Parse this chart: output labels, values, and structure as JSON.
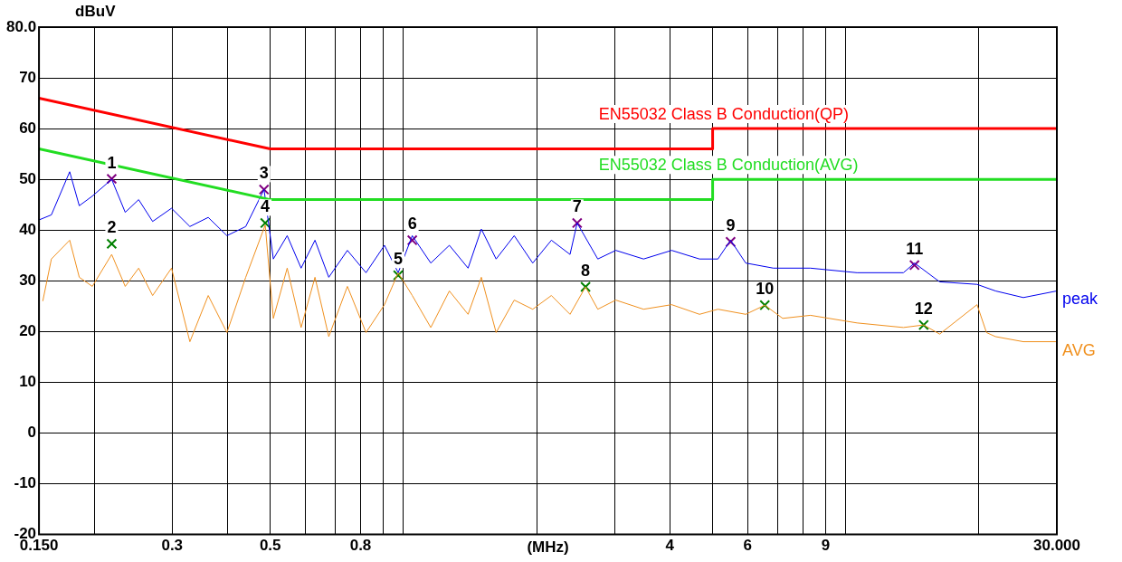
{
  "chart_data": {
    "type": "line",
    "ylabel": "dBuV",
    "xlabel": "(MHz)",
    "log": "x",
    "grid": true,
    "legend": false,
    "xlim": [
      0.15,
      30
    ],
    "xticks": [
      {
        "value": 0.15,
        "label": "0.150"
      },
      {
        "value": 0.2,
        "label": null
      },
      0.3,
      {
        "value": 0.4,
        "label": null
      },
      0.5,
      {
        "value": 0.6,
        "label": null
      },
      {
        "value": 0.7,
        "label": null
      },
      0.8,
      {
        "value": 0.9,
        "label": null
      },
      {
        "value": 1,
        "label": null
      },
      {
        "value": 2,
        "label": null
      },
      {
        "value": 3,
        "label": null
      },
      4,
      {
        "value": 5,
        "label": null
      },
      6,
      {
        "value": 7,
        "label": null
      },
      {
        "value": 8,
        "label": null
      },
      9,
      {
        "value": 10,
        "label": null
      },
      {
        "value": 20,
        "label": null
      },
      {
        "value": 30,
        "label": "30.000"
      }
    ],
    "ylim": [
      -20,
      80
    ],
    "yticks": [
      -20,
      -10,
      0,
      10,
      20,
      30,
      40,
      50,
      60,
      70,
      {
        "value": 80,
        "label": "80.0"
      }
    ],
    "series": [
      {
        "name": "EN55032 Class B Conduction(QP)",
        "type": "line",
        "color": "#ff0000",
        "x": [
          0.15,
          0.5,
          5,
          5,
          30
        ],
        "values": [
          66,
          56,
          56,
          60,
          60
        ]
      },
      {
        "name": "EN55032 Class B Conduction(AVG)",
        "type": "line",
        "color": "#22dd22",
        "x": [
          0.15,
          0.5,
          5,
          5,
          30
        ],
        "values": [
          56,
          46,
          46,
          50,
          50
        ]
      },
      {
        "name": "peak",
        "type": "line",
        "color": "#0000ee",
        "x": [
          0.15,
          0.16,
          0.176,
          0.185,
          0.198,
          0.219,
          0.235,
          0.252,
          0.271,
          0.299,
          0.329,
          0.362,
          0.399,
          0.44,
          0.484,
          0.508,
          0.546,
          0.587,
          0.631,
          0.678,
          0.747,
          0.823,
          0.906,
          0.973,
          1.047,
          1.153,
          1.27,
          1.4,
          1.5,
          1.62,
          1.78,
          1.96,
          2.16,
          2.38,
          2.47,
          2.75,
          3.02,
          3.49,
          4.04,
          4.67,
          5.14,
          5.49,
          5.94,
          6.86,
          8.32,
          10.6,
          13.5,
          14.3,
          16.3,
          19.8,
          21.8,
          25.2,
          30
        ],
        "values": [
          42,
          43,
          51.5,
          44.8,
          46.7,
          50,
          43.5,
          46,
          41.7,
          44.3,
          40.7,
          42.5,
          38.9,
          40.7,
          48,
          34.3,
          38.9,
          32.5,
          38,
          30.7,
          36,
          31.6,
          37,
          31.6,
          38.9,
          33.5,
          37,
          32.5,
          40.2,
          34.3,
          38.9,
          33.5,
          38,
          35.2,
          41.4,
          34.3,
          36,
          34.3,
          36,
          34.3,
          34.3,
          38,
          33.5,
          32.5,
          32.5,
          31.6,
          31.6,
          33.5,
          29.8,
          29.3,
          28,
          26.7,
          28
        ]
      },
      {
        "name": "AVG",
        "type": "line",
        "color": "#f0901e",
        "x": [
          0.153,
          0.16,
          0.176,
          0.185,
          0.198,
          0.219,
          0.235,
          0.252,
          0.271,
          0.299,
          0.329,
          0.362,
          0.399,
          0.44,
          0.487,
          0.508,
          0.546,
          0.587,
          0.631,
          0.678,
          0.747,
          0.823,
          0.906,
          0.973,
          1.047,
          1.153,
          1.27,
          1.4,
          1.5,
          1.62,
          1.78,
          1.96,
          2.16,
          2.38,
          2.58,
          2.75,
          3.02,
          3.49,
          4.04,
          4.67,
          5.14,
          5.94,
          6.56,
          7.2,
          8.32,
          10.6,
          13.5,
          15,
          16.3,
          19.8,
          20.8,
          21.8,
          25.2,
          30
        ],
        "values": [
          26,
          34.3,
          38,
          30.7,
          28.9,
          35.2,
          28.9,
          32.5,
          27.1,
          32.5,
          18,
          27.1,
          19.8,
          30.7,
          41,
          22.6,
          32.5,
          20.8,
          30.7,
          19,
          28.9,
          19.8,
          25.3,
          31.6,
          27.1,
          20.8,
          28,
          23.4,
          30.7,
          19.8,
          26.2,
          24.4,
          27.1,
          23.4,
          28.8,
          24.4,
          26.2,
          24.4,
          25.3,
          23.4,
          24.4,
          23.4,
          25.2,
          22.6,
          23.2,
          21.7,
          20.8,
          21.3,
          19.5,
          25.3,
          19.8,
          19,
          18,
          18
        ]
      },
      {
        "type": "scatter",
        "marker": "cross",
        "color": "#800080",
        "x": [
          0.219,
          0.484,
          1.047,
          2.47,
          5.49,
          14.3
        ],
        "values": [
          50.1,
          48,
          38,
          41.4,
          37.7,
          33.1
        ]
      },
      {
        "type": "scatter",
        "marker": "cross",
        "color": "#008000",
        "x": [
          0.219,
          0.487,
          0.973,
          2.58,
          6.56,
          15
        ],
        "values": [
          37.3,
          41.4,
          31.1,
          28.8,
          25.2,
          21.3
        ]
      }
    ],
    "annotations": [
      {
        "text": "1",
        "x": 0.219,
        "y": 50.1
      },
      {
        "text": "2",
        "x": 0.219,
        "y": 37.3
      },
      {
        "text": "3",
        "x": 0.484,
        "y": 48
      },
      {
        "text": "4",
        "x": 0.487,
        "y": 41.4
      },
      {
        "text": "5",
        "x": 0.973,
        "y": 31.1
      },
      {
        "text": "6",
        "x": 1.047,
        "y": 38
      },
      {
        "text": "7",
        "x": 2.47,
        "y": 41.4
      },
      {
        "text": "8",
        "x": 2.58,
        "y": 28.8
      },
      {
        "text": "9",
        "x": 5.49,
        "y": 37.7
      },
      {
        "text": "10",
        "x": 6.56,
        "y": 25.2
      },
      {
        "text": "11",
        "x": 14.3,
        "y": 33.1
      },
      {
        "text": "12",
        "x": 15,
        "y": 21.3
      }
    ]
  }
}
